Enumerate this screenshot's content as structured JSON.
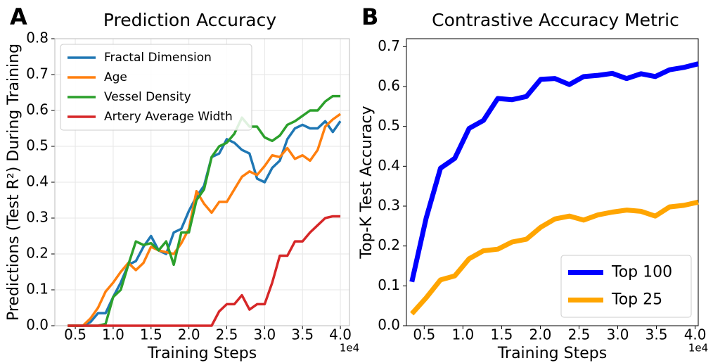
{
  "chart_data": [
    {
      "type": "line",
      "panel_label": "A",
      "title": "Prediction Accuracy",
      "xlabel": "Training Steps",
      "ylabel": "Predictions (Test R²) During Training",
      "x_offset_label": "1e4",
      "x": [
        0.4,
        0.5,
        0.6,
        0.7,
        0.8,
        0.9,
        1.0,
        1.1,
        1.2,
        1.3,
        1.4,
        1.5,
        1.6,
        1.7,
        1.8,
        1.9,
        2.0,
        2.1,
        2.2,
        2.3,
        2.4,
        2.5,
        2.6,
        2.7,
        2.8,
        2.9,
        3.0,
        3.1,
        3.2,
        3.3,
        3.4,
        3.5,
        3.6,
        3.7,
        3.8,
        3.9,
        4.0
      ],
      "series": [
        {
          "name": "Fractal Dimension",
          "color": "#1f77b4",
          "values": [
            0,
            0,
            0,
            0.01,
            0.035,
            0.035,
            0.08,
            0.12,
            0.17,
            0.18,
            0.22,
            0.25,
            0.21,
            0.2,
            0.26,
            0.27,
            0.32,
            0.36,
            0.39,
            0.47,
            0.48,
            0.52,
            0.51,
            0.49,
            0.48,
            0.41,
            0.4,
            0.44,
            0.46,
            0.52,
            0.55,
            0.56,
            0.55,
            0.55,
            0.57,
            0.54,
            0.57
          ]
        },
        {
          "name": "Age",
          "color": "#ff7f0e",
          "values": [
            0,
            0,
            0,
            0.02,
            0.05,
            0.095,
            0.12,
            0.15,
            0.175,
            0.155,
            0.175,
            0.22,
            0.21,
            0.205,
            0.2,
            0.23,
            0.27,
            0.375,
            0.34,
            0.315,
            0.345,
            0.345,
            0.38,
            0.415,
            0.43,
            0.42,
            0.445,
            0.475,
            0.47,
            0.495,
            0.465,
            0.475,
            0.46,
            0.49,
            0.555,
            0.575,
            0.59
          ]
        },
        {
          "name": "Vessel Density",
          "color": "#2ca02c",
          "values": [
            0,
            0,
            0,
            0,
            0,
            0.005,
            0.08,
            0.1,
            0.17,
            0.235,
            0.225,
            0.23,
            0.21,
            0.235,
            0.17,
            0.26,
            0.26,
            0.35,
            0.38,
            0.47,
            0.5,
            0.51,
            0.535,
            0.58,
            0.555,
            0.555,
            0.525,
            0.515,
            0.53,
            0.56,
            0.57,
            0.585,
            0.6,
            0.6,
            0.625,
            0.64,
            0.64
          ]
        },
        {
          "name": "Artery Average Width",
          "color": "#d62728",
          "values": [
            0,
            0,
            0,
            0,
            0,
            0,
            0,
            0,
            0,
            0,
            0,
            0,
            0,
            0,
            0,
            0,
            0,
            0,
            0,
            0,
            0.04,
            0.06,
            0.06,
            0.085,
            0.045,
            0.06,
            0.06,
            0.12,
            0.195,
            0.195,
            0.235,
            0.235,
            0.26,
            0.28,
            0.3,
            0.305,
            0.305
          ]
        }
      ],
      "xlim": [
        0.23,
        4.12
      ],
      "ylim": [
        0,
        0.8
      ],
      "xticks": [
        0.5,
        {
          "value": 1,
          "label": "1.0"
        },
        1.5,
        {
          "value": 2,
          "label": "2.0"
        },
        2.5,
        {
          "value": 3,
          "label": "3.0"
        },
        3.5,
        {
          "value": 4,
          "label": "4.0"
        }
      ],
      "yticks": [
        {
          "value": 0,
          "label": "0.0"
        },
        0.1,
        0.2,
        0.3,
        0.4,
        0.5,
        0.6,
        0.7,
        0.8
      ],
      "grid": true,
      "legend": "upper left"
    },
    {
      "type": "line",
      "panel_label": "B",
      "title": "Contrastive Accuracy Metric",
      "xlabel": "Training Steps",
      "ylabel": "Top-K Test Accuracy",
      "x_offset_label": "1e4",
      "x": [
        0.34,
        0.525,
        0.71,
        0.895,
        1.08,
        1.265,
        1.45,
        1.635,
        1.82,
        2.005,
        2.19,
        2.375,
        2.56,
        2.745,
        2.93,
        3.115,
        3.3,
        3.485,
        3.67,
        3.855,
        4.04
      ],
      "series": [
        {
          "name": "Top 100",
          "color": "#0000ff",
          "values": [
            0.11,
            0.27,
            0.395,
            0.42,
            0.495,
            0.515,
            0.57,
            0.567,
            0.575,
            0.618,
            0.62,
            0.605,
            0.625,
            0.628,
            0.633,
            0.62,
            0.632,
            0.625,
            0.642,
            0.648,
            0.657
          ]
        },
        {
          "name": "Top 25",
          "color": "#ffa500",
          "values": [
            0.03,
            0.07,
            0.115,
            0.125,
            0.168,
            0.188,
            0.192,
            0.21,
            0.217,
            0.247,
            0.268,
            0.275,
            0.265,
            0.278,
            0.285,
            0.29,
            0.287,
            0.275,
            0.298,
            0.302,
            0.31
          ]
        }
      ],
      "xlim": [
        0.27,
        4.04
      ],
      "ylim": [
        0,
        0.72
      ],
      "xticks": [
        0.5,
        {
          "value": 1,
          "label": "1.0"
        },
        1.5,
        {
          "value": 2,
          "label": "2.0"
        },
        2.5,
        {
          "value": 3,
          "label": "3.0"
        },
        3.5,
        {
          "value": 4,
          "label": "4.0"
        }
      ],
      "yticks": [
        {
          "value": 0,
          "label": "0.0"
        },
        0.1,
        0.2,
        0.3,
        0.4,
        0.5,
        0.6,
        0.7
      ],
      "grid": false,
      "legend": "lower right"
    }
  ]
}
